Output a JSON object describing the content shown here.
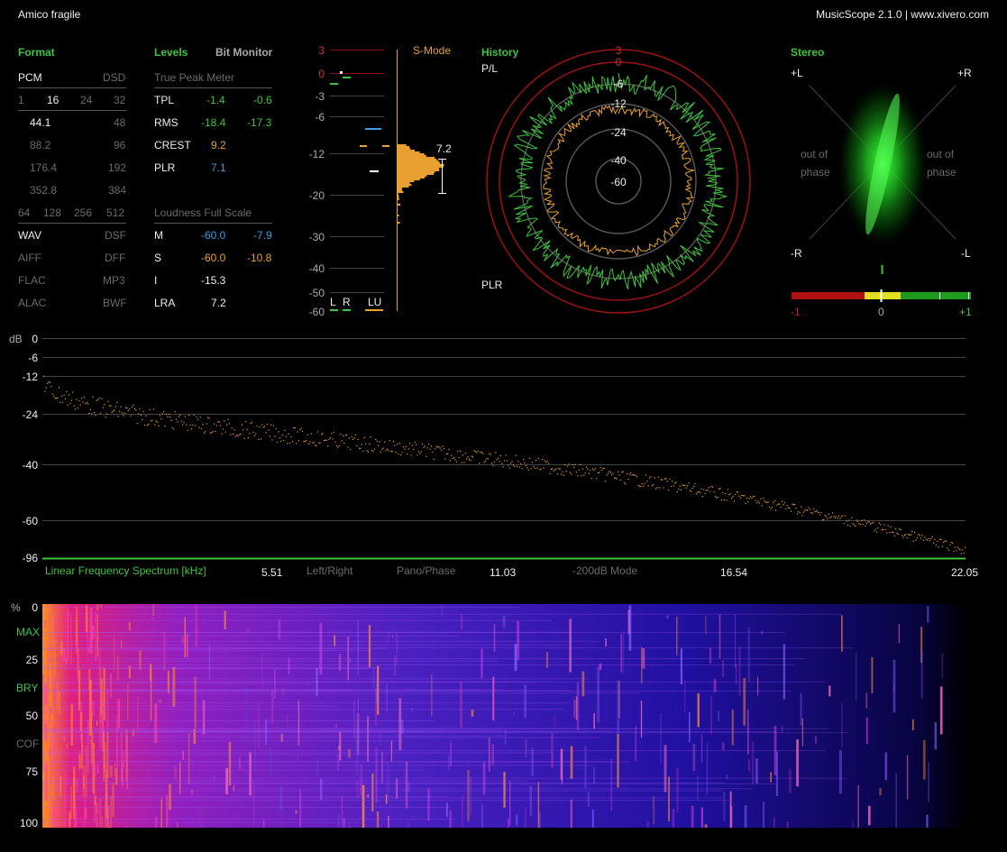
{
  "window": {
    "title": "Amico fragile",
    "app": "MusicScope 2.1.0 | www.xivero.com"
  },
  "format": {
    "header": "Format",
    "pcm": "PCM",
    "dsd": "DSD",
    "bits": [
      "1",
      "16",
      "24",
      "32"
    ],
    "rates_left": [
      "44.1",
      "88.2",
      "176.4",
      "352.8"
    ],
    "rates_right": [
      "48",
      "96",
      "192",
      "384"
    ],
    "dsd_rates": [
      "64",
      "128",
      "256",
      "512"
    ],
    "files_left": [
      "WAV",
      "AIFF",
      "FLAC",
      "ALAC"
    ],
    "files_right": [
      "DSF",
      "DFF",
      "MP3",
      "BWF"
    ]
  },
  "levels": {
    "header": "Levels",
    "bit_monitor": "Bit Monitor",
    "true_peak_label": "True Peak Meter",
    "rows": [
      {
        "name": "TPL",
        "l": "-1.4",
        "r": "-0.6"
      },
      {
        "name": "RMS",
        "l": "-18.4",
        "r": "-17.3"
      },
      {
        "name": "CREST",
        "l": "9.2"
      },
      {
        "name": "PLR",
        "l": "7.1"
      }
    ],
    "loudness_label": "Loudness Full Scale",
    "loud_rows": [
      {
        "name": "M",
        "a": "-60.0",
        "b": "-7.9"
      },
      {
        "name": "S",
        "a": "-60.0",
        "b": "-10.8"
      },
      {
        "name": "I",
        "a": "-15.3"
      },
      {
        "name": "LRA",
        "a": "7.2"
      }
    ]
  },
  "meter": {
    "smode": "S-Mode",
    "scale": [
      "3",
      "0",
      "-3",
      "-6",
      "-12",
      "-20",
      "-30",
      "-40",
      "-50",
      "-60"
    ],
    "channels": [
      "L",
      "R",
      "LU"
    ],
    "lra_value": "7.2"
  },
  "history": {
    "header": "History",
    "pl": "P/L",
    "plr": "PLR",
    "rings": [
      "3",
      "0",
      "-6",
      "-12",
      "-24",
      "-40",
      "-60"
    ]
  },
  "stereo": {
    "header": "Stereo",
    "plus_l": "+L",
    "plus_r": "+R",
    "minus_r": "-R",
    "minus_l": "-L",
    "oop_left": [
      "out of",
      "phase"
    ],
    "oop_right": [
      "out of",
      "phase"
    ],
    "corr_labels": [
      "-1",
      "0",
      "+1"
    ]
  },
  "spectrum": {
    "db_label": "dB",
    "y_ticks": [
      "0",
      "-6",
      "-12",
      "-24",
      "-40",
      "-60",
      "-96"
    ],
    "title": "Linear Frequency Spectrum [kHz]",
    "x_ticks": [
      "5.51",
      "11.03",
      "16.54",
      "22.05"
    ],
    "modes": [
      "Left/Right",
      "Pano/Phase",
      "-200dB Mode"
    ]
  },
  "spectrogram": {
    "y_labels": [
      "%",
      "0",
      "MAX",
      "25",
      "BRY",
      "50",
      "COF",
      "75",
      "100"
    ]
  },
  "colors": {
    "green": "#3ec43e",
    "orange": "#e8a030",
    "blue": "#3a9ee0",
    "red": "#b01010",
    "yellow": "#e0e020"
  }
}
